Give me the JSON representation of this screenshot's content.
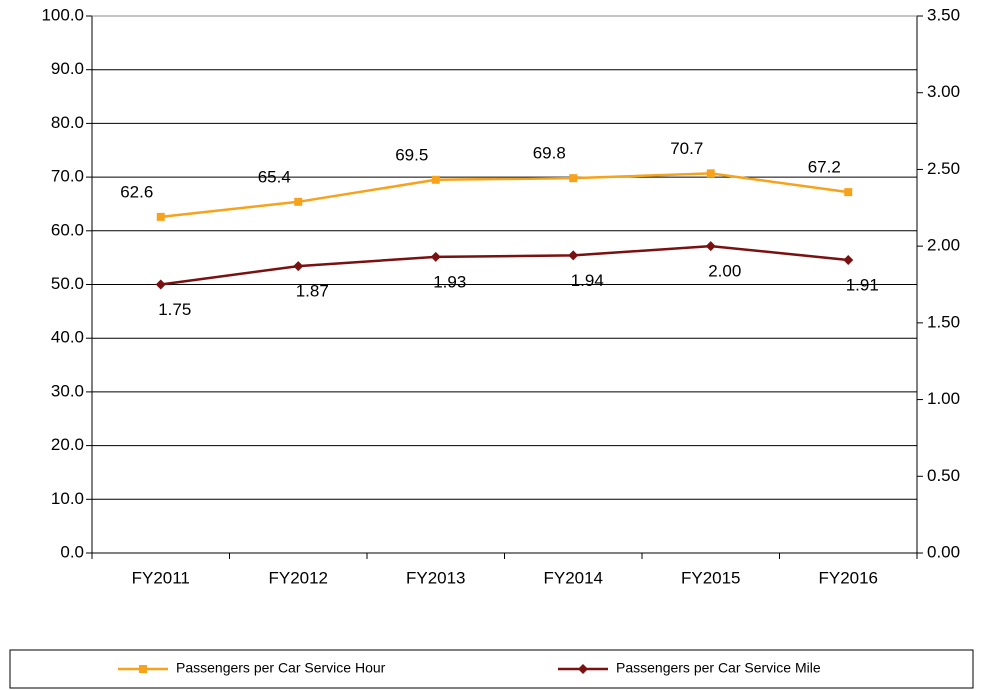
{
  "chart_data": {
    "type": "line",
    "categories": [
      "FY2011",
      "FY2012",
      "FY2013",
      "FY2014",
      "FY2015",
      "FY2016"
    ],
    "series": [
      {
        "name": "Passengers per Car Service Hour",
        "color": "#f7a21b",
        "marker": "square",
        "values": [
          62.6,
          65.4,
          69.5,
          69.8,
          70.7,
          67.2
        ]
      },
      {
        "name": "Passengers per Car Service Mile",
        "color": "#7b1010",
        "marker": "diamond",
        "axis": "y2",
        "values": [
          1.75,
          1.87,
          1.93,
          1.94,
          2.0,
          1.91
        ],
        "value_labels": [
          "1.75",
          "1.87",
          "1.93",
          "1.94",
          "2.00",
          "1.91"
        ]
      }
    ],
    "ylim": [
      0,
      100
    ],
    "yticks": [
      {
        "value": 0,
        "label": "0.0"
      },
      {
        "value": 10,
        "label": "10.0"
      },
      {
        "value": 20,
        "label": "20.0"
      },
      {
        "value": 30,
        "label": "30.0"
      },
      {
        "value": 40,
        "label": "40.0"
      },
      {
        "value": 50,
        "label": "50.0"
      },
      {
        "value": 60,
        "label": "60.0"
      },
      {
        "value": 70,
        "label": "70.0"
      },
      {
        "value": 80,
        "label": "80.0"
      },
      {
        "value": 90,
        "label": "90.0"
      },
      {
        "value": 100,
        "label": "100.0"
      }
    ],
    "y2lim": [
      0,
      3.5
    ],
    "y2ticks": [
      {
        "value": 0,
        "label": "0.00"
      },
      {
        "value": 0.5,
        "label": "0.50"
      },
      {
        "value": 1,
        "label": "1.00"
      },
      {
        "value": 1.5,
        "label": "1.50"
      },
      {
        "value": 2,
        "label": "2.00"
      },
      {
        "value": 2.5,
        "label": "2.50"
      },
      {
        "value": 3,
        "label": "3.00"
      },
      {
        "value": 3.5,
        "label": "3.50"
      }
    ],
    "grid": true,
    "legend": "bottom"
  }
}
